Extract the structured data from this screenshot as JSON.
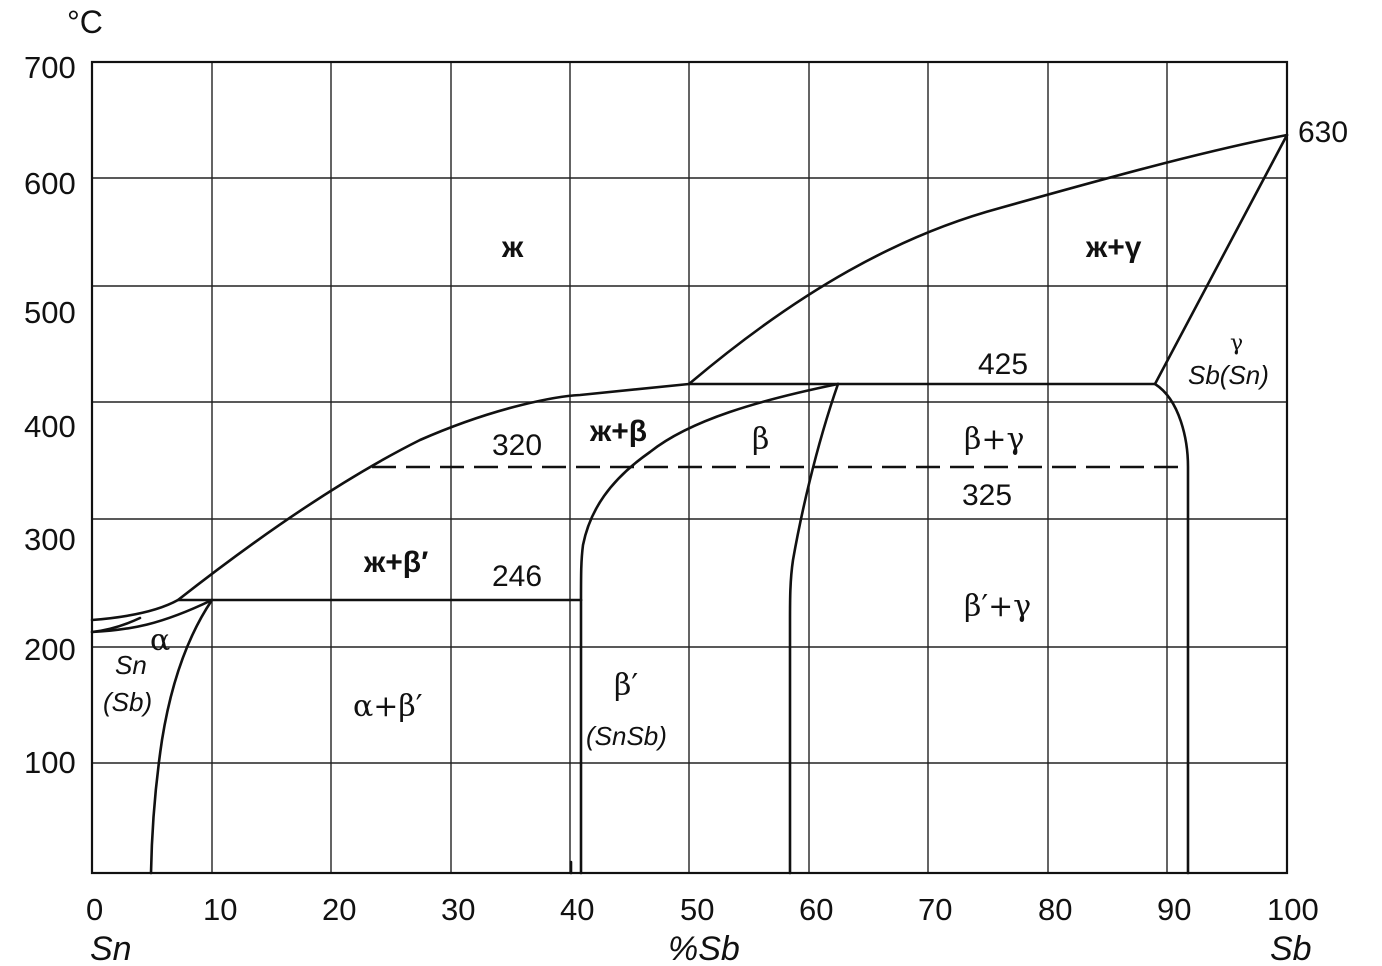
{
  "axis": {
    "y_unit": "°C",
    "y_ticks": [
      "700",
      "600",
      "500",
      "400",
      "300",
      "200",
      "100"
    ],
    "x_ticks": [
      "0",
      "10",
      "20",
      "30",
      "40",
      "50",
      "60",
      "70",
      "80",
      "90",
      "100"
    ],
    "x_label": "%Sb",
    "left_element": "Sn",
    "right_element": "Sb"
  },
  "isotherms": {
    "t630": "630",
    "t425": "425",
    "t320": "320",
    "t325": "325",
    "t246": "246"
  },
  "phases": {
    "liquid": "ж",
    "liquid_beta_prime": "ж+β′",
    "liquid_beta": "ж+β",
    "liquid_gamma": "ж+γ",
    "beta": "β",
    "beta_gamma": "β+γ",
    "beta_prime_gamma": "β′+γ",
    "alpha_beta_prime": "α+β′",
    "alpha": "α",
    "alpha_name_1": "Sn",
    "alpha_name_2": "(Sb)",
    "beta_prime": "β′",
    "beta_prime_name": "(SnSb)",
    "gamma": "γ",
    "gamma_name": "Sb(Sn)"
  }
}
